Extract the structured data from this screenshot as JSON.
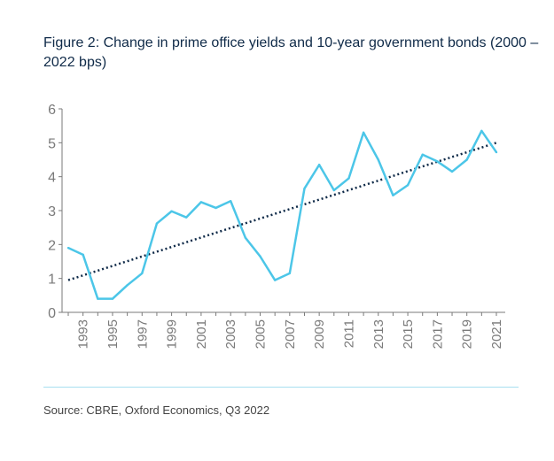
{
  "figure": {
    "title": "Figure 2: Change in prime office yields and 10-year government bonds (2000 – 2022 bps)",
    "source": "Source: CBRE, Oxford Economics, Q3 2022"
  },
  "colors": {
    "series": "#4cc6e8",
    "trend": "#0f2a48",
    "axis": "#7a7a7a",
    "divider": "#a8dff0"
  },
  "chart_data": {
    "type": "line",
    "x": [
      1992,
      1993,
      1994,
      1995,
      1996,
      1997,
      1998,
      1999,
      2000,
      2001,
      2002,
      2003,
      2004,
      2005,
      2006,
      2007,
      2008,
      2009,
      2010,
      2011,
      2012,
      2013,
      2014,
      2015,
      2016,
      2017,
      2018,
      2019,
      2020,
      2021
    ],
    "series": [
      {
        "values": [
          1.9,
          1.7,
          0.4,
          0.4,
          0.8,
          1.15,
          2.62,
          2.98,
          2.8,
          3.25,
          3.08,
          3.28,
          2.2,
          1.65,
          0.95,
          1.15,
          3.65,
          4.35,
          3.6,
          3.95,
          5.3,
          4.5,
          3.45,
          3.75,
          4.65,
          4.45,
          4.15,
          4.5,
          5.35,
          4.72
        ]
      }
    ],
    "trendline": {
      "type": "linear",
      "start": [
        1992,
        0.95
      ],
      "end": [
        2021,
        5.0
      ],
      "style": "dotted"
    },
    "xticks": [
      "1993",
      "1995",
      "1997",
      "1999",
      "2001",
      "2003",
      "2005",
      "2007",
      "2009",
      "2011",
      "2013",
      "2015",
      "2017",
      "2019",
      "2021"
    ],
    "yticks": [
      0,
      1,
      2,
      3,
      4,
      5,
      6
    ],
    "ylim": [
      0,
      6
    ],
    "xlim": [
      1992,
      2021
    ],
    "xlabel": "",
    "ylabel": "",
    "grid": false,
    "legend": "none"
  }
}
